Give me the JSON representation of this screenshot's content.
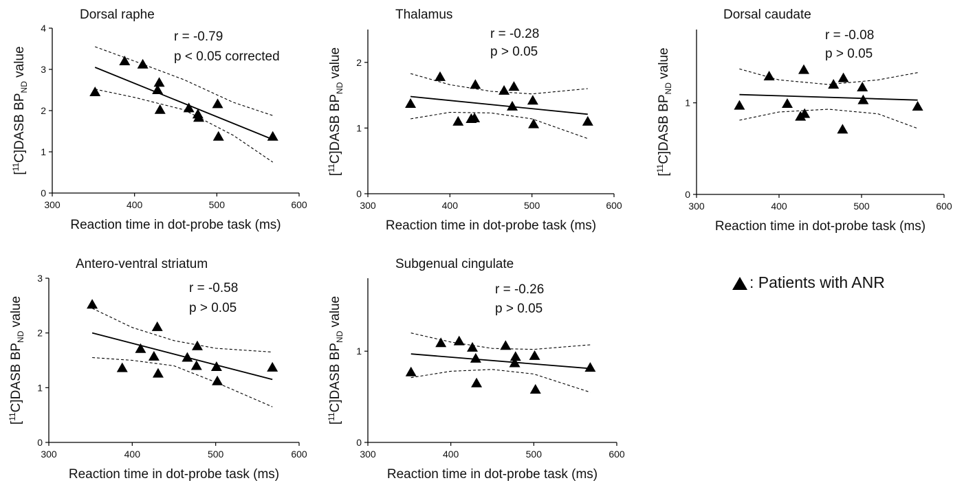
{
  "legend": {
    "marker": "triangle",
    "label": ": Patients with ANR"
  },
  "ylabel_prefix": "[",
  "ylabel_sup": "11",
  "ylabel_mid": "C]DASB BP",
  "ylabel_sub": "ND",
  "ylabel_suffix": " value",
  "colors": {
    "marker": "#000000",
    "fit": "#000000",
    "ci": "#000000",
    "axis": "#000000"
  },
  "chart_data": [
    {
      "type": "scatter",
      "title": "Dorsal raphe",
      "xlabel": "Reaction time in dot-probe task (ms)",
      "xlim": [
        300,
        600
      ],
      "ylim": [
        0,
        4
      ],
      "xticks": [
        "300",
        "400",
        "500",
        "600"
      ],
      "yticks": [
        "0",
        "1",
        "2",
        "3",
        "4"
      ],
      "stats": [
        "r =  -0.79",
        "p < 0.05 corrected"
      ],
      "points": [
        [
          352,
          2.45
        ],
        [
          388,
          3.2
        ],
        [
          410,
          3.12
        ],
        [
          428,
          2.5
        ],
        [
          430,
          2.68
        ],
        [
          431,
          2.02
        ],
        [
          466,
          2.06
        ],
        [
          477,
          1.91
        ],
        [
          478,
          1.83
        ],
        [
          501,
          2.16
        ],
        [
          502,
          1.37
        ],
        [
          568,
          1.37
        ]
      ],
      "fit": {
        "x": [
          352,
          568
        ],
        "y": [
          3.05,
          1.3
        ]
      },
      "ci_upper": {
        "x": [
          352,
          400,
          460,
          520,
          568
        ],
        "y": [
          3.55,
          3.2,
          2.75,
          2.2,
          1.88
        ]
      },
      "ci_lower": {
        "x": [
          352,
          400,
          460,
          520,
          568
        ],
        "y": [
          2.52,
          2.32,
          2.02,
          1.4,
          0.75
        ]
      }
    },
    {
      "type": "scatter",
      "title": "Thalamus",
      "xlabel": "Reaction time in dot-probe task (ms)",
      "xlim": [
        300,
        600
      ],
      "ylim": [
        0,
        2.5
      ],
      "xticks": [
        "300",
        "400",
        "500",
        "600"
      ],
      "yticks": [
        "0",
        "1",
        "2"
      ],
      "stats": [
        "r =  -0.28",
        "p > 0.05"
      ],
      "points": [
        [
          352,
          1.37
        ],
        [
          388,
          1.78
        ],
        [
          410,
          1.1
        ],
        [
          426,
          1.14
        ],
        [
          430,
          1.15
        ],
        [
          431,
          1.66
        ],
        [
          466,
          1.57
        ],
        [
          476,
          1.33
        ],
        [
          478,
          1.63
        ],
        [
          501,
          1.42
        ],
        [
          502,
          1.06
        ],
        [
          568,
          1.1
        ]
      ],
      "fit": {
        "x": [
          352,
          568
        ],
        "y": [
          1.48,
          1.21
        ]
      },
      "ci_upper": {
        "x": [
          352,
          400,
          450,
          500,
          568
        ],
        "y": [
          1.83,
          1.66,
          1.56,
          1.52,
          1.6
        ]
      },
      "ci_lower": {
        "x": [
          352,
          400,
          450,
          500,
          568
        ],
        "y": [
          1.14,
          1.24,
          1.23,
          1.14,
          0.84
        ]
      }
    },
    {
      "type": "scatter",
      "title": "Dorsal caudate",
      "xlabel": "Reaction time in dot-probe task (ms)",
      "xlim": [
        300,
        600
      ],
      "ylim": [
        0,
        1.8
      ],
      "xticks": [
        "300",
        "400",
        "500",
        "600"
      ],
      "yticks": [
        "0",
        "1"
      ],
      "stats": [
        "r =  -0.08",
        "p > 0.05"
      ],
      "points": [
        [
          352,
          0.97
        ],
        [
          388,
          1.29
        ],
        [
          410,
          0.99
        ],
        [
          426,
          0.85
        ],
        [
          430,
          1.36
        ],
        [
          431,
          0.88
        ],
        [
          466,
          1.2
        ],
        [
          477,
          0.71
        ],
        [
          478,
          1.27
        ],
        [
          501,
          1.17
        ],
        [
          502,
          1.03
        ],
        [
          568,
          0.96
        ]
      ],
      "fit": {
        "x": [
          352,
          568
        ],
        "y": [
          1.09,
          1.03
        ]
      },
      "ci_upper": {
        "x": [
          352,
          400,
          460,
          520,
          568
        ],
        "y": [
          1.37,
          1.25,
          1.2,
          1.25,
          1.33
        ]
      },
      "ci_lower": {
        "x": [
          352,
          400,
          460,
          520,
          568
        ],
        "y": [
          0.81,
          0.9,
          0.93,
          0.88,
          0.72
        ]
      }
    },
    {
      "type": "scatter",
      "title": "Antero-ventral striatum",
      "xlabel": "Reaction time in dot-probe task (ms)",
      "xlim": [
        300,
        600
      ],
      "ylim": [
        0,
        3
      ],
      "xticks": [
        "300",
        "400",
        "500",
        "600"
      ],
      "yticks": [
        "0",
        "1",
        "2",
        "3"
      ],
      "stats": [
        "r =  -0.58",
        "p > 0.05"
      ],
      "points": [
        [
          352,
          2.52
        ],
        [
          388,
          1.36
        ],
        [
          410,
          1.71
        ],
        [
          426,
          1.57
        ],
        [
          430,
          2.11
        ],
        [
          431,
          1.26
        ],
        [
          466,
          1.55
        ],
        [
          477,
          1.4
        ],
        [
          478,
          1.76
        ],
        [
          501,
          1.38
        ],
        [
          502,
          1.12
        ],
        [
          568,
          1.37
        ]
      ],
      "fit": {
        "x": [
          352,
          568
        ],
        "y": [
          2.0,
          1.15
        ]
      },
      "ci_upper": {
        "x": [
          352,
          400,
          450,
          500,
          568
        ],
        "y": [
          2.45,
          2.1,
          1.86,
          1.72,
          1.65
        ]
      },
      "ci_lower": {
        "x": [
          352,
          400,
          450,
          500,
          568
        ],
        "y": [
          1.55,
          1.5,
          1.4,
          1.1,
          0.65
        ]
      }
    },
    {
      "type": "scatter",
      "title": "Subgenual cingulate",
      "xlabel": "Reaction time in dot-probe task (ms)",
      "xlim": [
        300,
        600
      ],
      "ylim": [
        0,
        1.8
      ],
      "xticks": [
        "300",
        "400",
        "500",
        "600"
      ],
      "yticks": [
        "0",
        "1"
      ],
      "stats": [
        "r =  -0.26",
        "p > 0.05"
      ],
      "points": [
        [
          352,
          0.77
        ],
        [
          388,
          1.09
        ],
        [
          410,
          1.11
        ],
        [
          426,
          1.04
        ],
        [
          430,
          0.92
        ],
        [
          431,
          0.65
        ],
        [
          466,
          1.06
        ],
        [
          477,
          0.87
        ],
        [
          478,
          0.94
        ],
        [
          501,
          0.95
        ],
        [
          502,
          0.58
        ],
        [
          568,
          0.82
        ]
      ],
      "fit": {
        "x": [
          352,
          568
        ],
        "y": [
          0.97,
          0.81
        ]
      },
      "ci_upper": {
        "x": [
          352,
          400,
          450,
          500,
          568
        ],
        "y": [
          1.2,
          1.1,
          1.03,
          1.02,
          1.07
        ]
      },
      "ci_lower": {
        "x": [
          352,
          400,
          450,
          500,
          568
        ],
        "y": [
          0.71,
          0.78,
          0.8,
          0.75,
          0.55
        ]
      }
    }
  ]
}
